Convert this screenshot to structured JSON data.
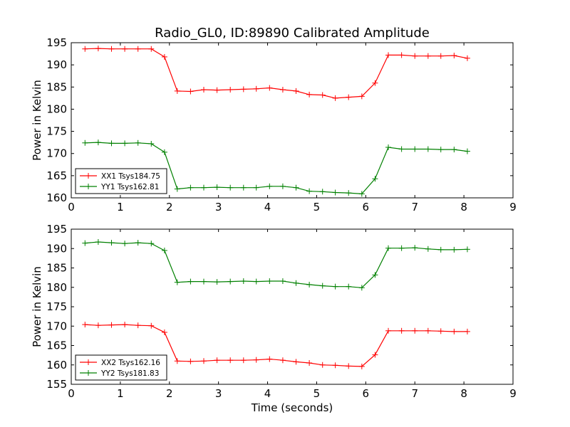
{
  "chart_data": {
    "title": "Radio_GL0, ID:89890 Calibrated Amplitude",
    "xlabel": "Time (seconds)",
    "legend_position": "lower-left",
    "grid": false,
    "panels": [
      {
        "type": "line",
        "ylabel": "Power in Kelvin",
        "xlim": [
          0,
          9
        ],
        "ylim": [
          160,
          195
        ],
        "x_ticks": [
          "0",
          "1",
          "2",
          "3",
          "4",
          "5",
          "6",
          "7",
          "8",
          "9"
        ],
        "y_ticks": [
          "160",
          "165",
          "170",
          "175",
          "180",
          "185",
          "190",
          "195"
        ],
        "series": [
          {
            "name": "XX1 Tsys184.75",
            "color": "#ff0000",
            "x": [
              0.28,
              0.55,
              0.82,
              1.09,
              1.36,
              1.63,
              1.9,
              2.16,
              2.43,
              2.7,
              2.97,
              3.24,
              3.51,
              3.77,
              4.04,
              4.31,
              4.58,
              4.85,
              5.12,
              5.38,
              5.65,
              5.92,
              6.19,
              6.46,
              6.73,
              7.0,
              7.27,
              7.53,
              7.8,
              8.07
            ],
            "y": [
              193.6,
              193.7,
              193.6,
              193.6,
              193.6,
              193.6,
              191.8,
              184.1,
              184.0,
              184.4,
              184.3,
              184.4,
              184.5,
              184.6,
              184.8,
              184.4,
              184.1,
              183.3,
              183.2,
              182.5,
              182.7,
              182.9,
              185.9,
              192.2,
              192.2,
              192.0,
              192.0,
              192.0,
              192.1,
              191.5
            ]
          },
          {
            "name": "YY1 Tsys162.81",
            "color": "#008000",
            "x": [
              0.28,
              0.55,
              0.82,
              1.09,
              1.36,
              1.63,
              1.9,
              2.16,
              2.43,
              2.7,
              2.97,
              3.24,
              3.51,
              3.77,
              4.04,
              4.31,
              4.58,
              4.85,
              5.12,
              5.38,
              5.65,
              5.92,
              6.19,
              6.46,
              6.73,
              7.0,
              7.27,
              7.53,
              7.8,
              8.07
            ],
            "y": [
              172.4,
              172.5,
              172.3,
              172.3,
              172.4,
              172.2,
              170.3,
              162.0,
              162.3,
              162.3,
              162.4,
              162.3,
              162.3,
              162.3,
              162.6,
              162.6,
              162.3,
              161.5,
              161.4,
              161.2,
              161.1,
              160.9,
              164.3,
              171.4,
              171.0,
              171.0,
              171.0,
              170.9,
              170.9,
              170.5
            ]
          }
        ]
      },
      {
        "type": "line",
        "ylabel": "Power in Kelvin",
        "xlim": [
          0,
          9
        ],
        "ylim": [
          155,
          195
        ],
        "x_ticks": [
          "0",
          "1",
          "2",
          "3",
          "4",
          "5",
          "6",
          "7",
          "8",
          "9"
        ],
        "y_ticks": [
          "155",
          "160",
          "165",
          "170",
          "175",
          "180",
          "185",
          "190",
          "195"
        ],
        "series": [
          {
            "name": "XX2 Tsys162.16",
            "color": "#ff0000",
            "x": [
              0.28,
              0.55,
              0.82,
              1.09,
              1.36,
              1.63,
              1.9,
              2.16,
              2.43,
              2.7,
              2.97,
              3.24,
              3.51,
              3.77,
              4.04,
              4.31,
              4.58,
              4.85,
              5.12,
              5.38,
              5.65,
              5.92,
              6.19,
              6.46,
              6.73,
              7.0,
              7.27,
              7.53,
              7.8,
              8.07
            ],
            "y": [
              170.4,
              170.2,
              170.3,
              170.4,
              170.2,
              170.1,
              168.4,
              161.0,
              160.9,
              161.0,
              161.2,
              161.2,
              161.2,
              161.3,
              161.5,
              161.2,
              160.8,
              160.5,
              160.0,
              159.9,
              159.7,
              159.6,
              162.6,
              168.8,
              168.8,
              168.8,
              168.8,
              168.7,
              168.6,
              168.6
            ]
          },
          {
            "name": "YY2 Tsys181.83",
            "color": "#008000",
            "x": [
              0.28,
              0.55,
              0.82,
              1.09,
              1.36,
              1.63,
              1.9,
              2.16,
              2.43,
              2.7,
              2.97,
              3.24,
              3.51,
              3.77,
              4.04,
              4.31,
              4.58,
              4.85,
              5.12,
              5.38,
              5.65,
              5.92,
              6.19,
              6.46,
              6.73,
              7.0,
              7.27,
              7.53,
              7.8,
              8.07
            ],
            "y": [
              191.4,
              191.7,
              191.5,
              191.3,
              191.5,
              191.3,
              189.5,
              181.3,
              181.5,
              181.5,
              181.4,
              181.5,
              181.6,
              181.5,
              181.6,
              181.6,
              181.1,
              180.7,
              180.4,
              180.2,
              180.2,
              179.9,
              183.2,
              190.1,
              190.1,
              190.2,
              189.9,
              189.7,
              189.7,
              189.8
            ]
          }
        ]
      }
    ]
  }
}
